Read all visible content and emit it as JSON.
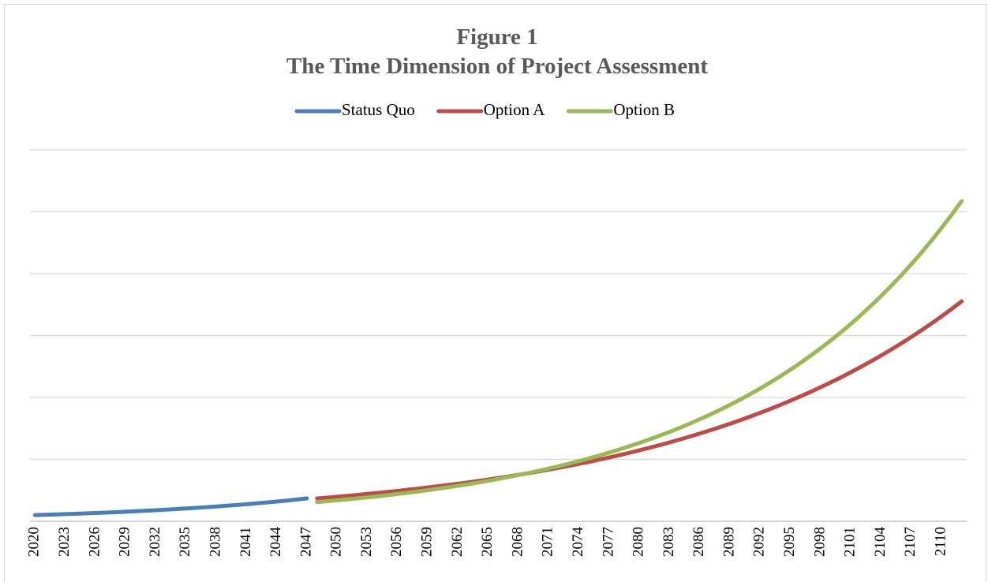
{
  "chart_data": {
    "type": "line",
    "title": "Figure 1",
    "subtitle": "The Time Dimension of Project Assessment",
    "x": [
      2020,
      2021,
      2022,
      2023,
      2024,
      2025,
      2026,
      2027,
      2028,
      2029,
      2030,
      2031,
      2032,
      2033,
      2034,
      2035,
      2036,
      2037,
      2038,
      2039,
      2040,
      2041,
      2042,
      2043,
      2044,
      2045,
      2046,
      2047,
      2048,
      2049,
      2050,
      2051,
      2052,
      2053,
      2054,
      2055,
      2056,
      2057,
      2058,
      2059,
      2060,
      2061,
      2062,
      2063,
      2064,
      2065,
      2066,
      2067,
      2068,
      2069,
      2070,
      2071,
      2072,
      2073,
      2074,
      2075,
      2076,
      2077,
      2078,
      2079,
      2080,
      2081,
      2082,
      2083,
      2084,
      2085,
      2086,
      2087,
      2088,
      2089,
      2090,
      2091,
      2092,
      2093,
      2094,
      2095,
      2096,
      2097,
      2098,
      2099,
      2100,
      2101,
      2102,
      2103,
      2104,
      2105,
      2106,
      2107,
      2108,
      2109,
      2110,
      2111,
      2112
    ],
    "series": [
      {
        "name": "Status Quo",
        "color": "#4a7ebb",
        "values": [
          0.1,
          0.105,
          0.11,
          0.116,
          0.121,
          0.127,
          0.134,
          0.14,
          0.147,
          0.155,
          0.162,
          0.17,
          0.179,
          0.188,
          0.197,
          0.207,
          0.217,
          0.228,
          0.239,
          0.251,
          0.263,
          0.276,
          0.29,
          0.304,
          0.319,
          0.335,
          0.352,
          0.369,
          null,
          null,
          null,
          null,
          null,
          null,
          null,
          null,
          null,
          null,
          null,
          null,
          null,
          null,
          null,
          null,
          null,
          null,
          null,
          null,
          null,
          null,
          null,
          null,
          null,
          null,
          null,
          null,
          null,
          null,
          null,
          null,
          null,
          null,
          null,
          null,
          null,
          null,
          null,
          null,
          null,
          null,
          null,
          null,
          null,
          null,
          null,
          null,
          null,
          null,
          null,
          null,
          null,
          null,
          null,
          null,
          null,
          null,
          null,
          null,
          null,
          null,
          null,
          null,
          null
        ]
      },
      {
        "name": "Option A",
        "color": "#be4b48",
        "values": [
          null,
          null,
          null,
          null,
          null,
          null,
          null,
          null,
          null,
          null,
          null,
          null,
          null,
          null,
          null,
          null,
          null,
          null,
          null,
          null,
          null,
          null,
          null,
          null,
          null,
          null,
          null,
          null,
          0.37,
          0.383,
          0.397,
          0.411,
          0.426,
          0.442,
          0.457,
          0.474,
          0.491,
          0.509,
          0.527,
          0.546,
          0.565,
          0.586,
          0.607,
          0.628,
          0.651,
          0.674,
          0.699,
          0.724,
          0.75,
          0.777,
          0.805,
          0.834,
          0.864,
          0.895,
          0.927,
          0.96,
          0.995,
          1.031,
          1.068,
          1.106,
          1.146,
          1.187,
          1.23,
          1.274,
          1.32,
          1.368,
          1.417,
          1.468,
          1.521,
          1.575,
          1.632,
          1.691,
          1.752,
          1.815,
          1.88,
          1.948,
          2.018,
          2.09,
          2.166,
          2.244,
          2.324,
          2.408,
          2.495,
          2.584,
          2.677,
          2.774,
          2.873,
          2.977,
          3.084,
          3.195,
          3.31,
          3.429,
          3.553
        ]
      },
      {
        "name": "Option B",
        "color": "#98b954",
        "values": [
          null,
          null,
          null,
          null,
          null,
          null,
          null,
          null,
          null,
          null,
          null,
          null,
          null,
          null,
          null,
          null,
          null,
          null,
          null,
          null,
          null,
          null,
          null,
          null,
          null,
          null,
          null,
          null,
          0.31,
          0.324,
          0.339,
          0.354,
          0.37,
          0.386,
          0.403,
          0.422,
          0.441,
          0.46,
          0.481,
          0.503,
          0.525,
          0.549,
          0.573,
          0.599,
          0.626,
          0.654,
          0.684,
          0.714,
          0.746,
          0.78,
          0.815,
          0.852,
          0.89,
          0.93,
          0.972,
          1.016,
          1.061,
          1.109,
          1.159,
          1.211,
          1.266,
          1.323,
          1.382,
          1.444,
          1.509,
          1.577,
          1.648,
          1.722,
          1.8,
          1.881,
          1.965,
          2.054,
          2.146,
          2.243,
          2.343,
          2.449,
          2.559,
          2.674,
          2.794,
          2.92,
          3.051,
          3.188,
          3.332,
          3.482,
          3.638,
          3.802,
          3.973,
          4.152,
          4.338,
          4.533,
          4.737,
          4.951,
          5.173
        ]
      }
    ],
    "xlim": [
      2019.5,
      2112.5
    ],
    "xticks": [
      2020,
      2023,
      2026,
      2029,
      2032,
      2035,
      2038,
      2041,
      2044,
      2047,
      2050,
      2053,
      2056,
      2059,
      2062,
      2065,
      2068,
      2071,
      2074,
      2077,
      2080,
      2083,
      2086,
      2089,
      2092,
      2095,
      2098,
      2101,
      2104,
      2107,
      2110
    ],
    "ylim": [
      0,
      6
    ],
    "yticks": [
      0,
      1,
      2,
      3,
      4,
      5,
      6
    ],
    "grid": true,
    "legend": "top"
  }
}
